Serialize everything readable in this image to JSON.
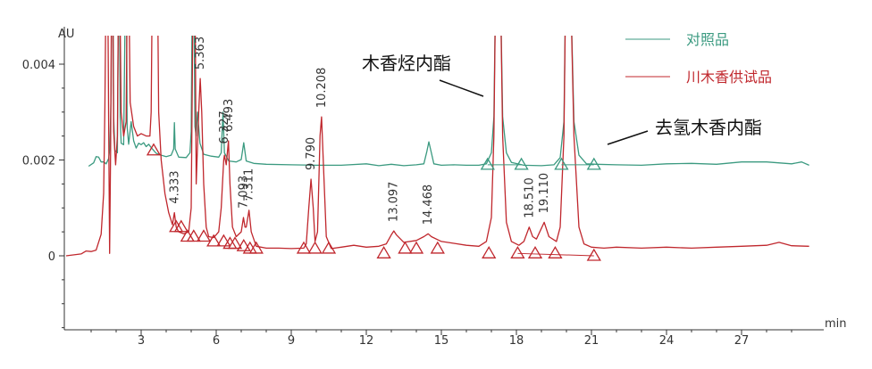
{
  "chart_data": {
    "type": "line",
    "title": "",
    "xlabel": "min",
    "ylabel": "AU",
    "xlim": [
      0,
      30
    ],
    "ylim": [
      -0.0016,
      0.0043
    ],
    "grid": false,
    "legend_position": "top-right",
    "x_ticks": [
      3,
      6,
      9,
      12,
      15,
      18,
      21,
      24,
      27
    ],
    "x_tick_labels": [
      "3",
      "6",
      "9",
      "12",
      "15",
      "18",
      "21",
      "24",
      "27"
    ],
    "y_ticks": [
      0,
      0.002,
      0.004
    ],
    "y_tick_labels": [
      "0",
      "0.002",
      "0.004"
    ],
    "series": [
      {
        "name": "对照品",
        "color": "#3b9a80",
        "points": [
          [
            0.9,
            0.00187
          ],
          [
            1.1,
            0.00194
          ],
          [
            1.2,
            0.00207
          ],
          [
            1.3,
            0.00206
          ],
          [
            1.4,
            0.00196
          ],
          [
            1.5,
            0.00196
          ],
          [
            1.6,
            0.00192
          ],
          [
            1.7,
            0.00203
          ],
          [
            1.75,
            0.00225
          ],
          [
            1.8,
            0.0034
          ],
          [
            1.83,
            0.006
          ],
          [
            1.87,
            0.006
          ],
          [
            1.9,
            0.0029
          ],
          [
            1.95,
            0.0022
          ],
          [
            2.05,
            0.00215
          ],
          [
            2.1,
            0.006
          ],
          [
            2.13,
            0.006
          ],
          [
            2.16,
            0.0029
          ],
          [
            2.2,
            0.00235
          ],
          [
            2.3,
            0.00232
          ],
          [
            2.38,
            0.006
          ],
          [
            2.41,
            0.006
          ],
          [
            2.44,
            0.0027
          ],
          [
            2.5,
            0.00233
          ],
          [
            2.6,
            0.0028
          ],
          [
            2.7,
            0.0024
          ],
          [
            2.8,
            0.00225
          ],
          [
            2.9,
            0.00235
          ],
          [
            3.0,
            0.00232
          ],
          [
            3.1,
            0.00236
          ],
          [
            3.2,
            0.00228
          ],
          [
            3.3,
            0.00233
          ],
          [
            3.4,
            0.00226
          ],
          [
            3.5,
            0.0022
          ],
          [
            3.6,
            0.00214
          ],
          [
            3.8,
            0.0021
          ],
          [
            4.0,
            0.00207
          ],
          [
            4.2,
            0.0021
          ],
          [
            4.3,
            0.00223
          ],
          [
            4.33,
            0.00278
          ],
          [
            4.36,
            0.00223
          ],
          [
            4.5,
            0.00206
          ],
          [
            4.8,
            0.00205
          ],
          [
            4.95,
            0.00215
          ],
          [
            5.0,
            0.0026
          ],
          [
            5.05,
            0.006
          ],
          [
            5.1,
            0.006
          ],
          [
            5.15,
            0.0027
          ],
          [
            5.2,
            0.0025
          ],
          [
            5.25,
            0.003
          ],
          [
            5.3,
            0.0027
          ],
          [
            5.35,
            0.00235
          ],
          [
            5.5,
            0.00212
          ],
          [
            5.8,
            0.00208
          ],
          [
            6.1,
            0.00206
          ],
          [
            6.2,
            0.00215
          ],
          [
            6.27,
            0.003
          ],
          [
            6.33,
            0.00215
          ],
          [
            6.5,
            0.00198
          ],
          [
            6.8,
            0.00196
          ],
          [
            7.0,
            0.00201
          ],
          [
            7.1,
            0.00236
          ],
          [
            7.2,
            0.00198
          ],
          [
            7.5,
            0.00193
          ],
          [
            8.0,
            0.00191
          ],
          [
            9.0,
            0.0019
          ],
          [
            10.0,
            0.00189
          ],
          [
            11.0,
            0.00189
          ],
          [
            12.0,
            0.00192
          ],
          [
            12.5,
            0.00188
          ],
          [
            13.0,
            0.00191
          ],
          [
            13.5,
            0.00188
          ],
          [
            14.0,
            0.0019
          ],
          [
            14.3,
            0.00192
          ],
          [
            14.42,
            0.00218
          ],
          [
            14.5,
            0.00238
          ],
          [
            14.6,
            0.00215
          ],
          [
            14.7,
            0.00192
          ],
          [
            15.0,
            0.00189
          ],
          [
            15.5,
            0.0019
          ],
          [
            16.0,
            0.00189
          ],
          [
            16.5,
            0.00189
          ],
          [
            16.8,
            0.00192
          ],
          [
            17.0,
            0.00215
          ],
          [
            17.1,
            0.0029
          ],
          [
            17.18,
            0.006
          ],
          [
            17.35,
            0.006
          ],
          [
            17.45,
            0.0029
          ],
          [
            17.6,
            0.00215
          ],
          [
            17.8,
            0.00195
          ],
          [
            18.3,
            0.00189
          ],
          [
            19.0,
            0.00188
          ],
          [
            19.5,
            0.0019
          ],
          [
            19.75,
            0.00205
          ],
          [
            19.9,
            0.0028
          ],
          [
            19.98,
            0.006
          ],
          [
            20.15,
            0.006
          ],
          [
            20.3,
            0.0028
          ],
          [
            20.5,
            0.0021
          ],
          [
            20.8,
            0.00192
          ],
          [
            21.2,
            0.00191
          ],
          [
            22.0,
            0.0019
          ],
          [
            23.0,
            0.00189
          ],
          [
            24.0,
            0.00192
          ],
          [
            25.0,
            0.00193
          ],
          [
            26.0,
            0.00191
          ],
          [
            27.0,
            0.00196
          ],
          [
            28.0,
            0.00196
          ],
          [
            29.0,
            0.00192
          ],
          [
            29.4,
            0.00196
          ],
          [
            29.7,
            0.00189
          ]
        ],
        "baseline_marks": [
          [
            16.85,
            0.0019
          ],
          [
            18.2,
            0.0019
          ],
          [
            19.8,
            0.0019
          ],
          [
            21.1,
            0.0019
          ]
        ]
      },
      {
        "name": "川木香供试品",
        "color": "#c0272d",
        "points": [
          [
            0.0,
            0.0
          ],
          [
            0.6,
            4e-05
          ],
          [
            0.8,
            0.0001
          ],
          [
            1.0,
            9e-05
          ],
          [
            1.2,
            0.00012
          ],
          [
            1.4,
            0.00045
          ],
          [
            1.5,
            0.0013
          ],
          [
            1.55,
            0.0031
          ],
          [
            1.6,
            0.006
          ],
          [
            1.66,
            0.006
          ],
          [
            1.7,
            0.0028
          ],
          [
            1.74,
            5e-05
          ],
          [
            1.78,
            0.0022
          ],
          [
            1.82,
            0.006
          ],
          [
            1.86,
            0.006
          ],
          [
            1.9,
            0.0026
          ],
          [
            1.98,
            0.0019
          ],
          [
            2.05,
            0.0025
          ],
          [
            2.1,
            0.006
          ],
          [
            2.14,
            0.006
          ],
          [
            2.2,
            0.003
          ],
          [
            2.3,
            0.0025
          ],
          [
            2.4,
            0.0028
          ],
          [
            2.45,
            0.006
          ],
          [
            2.5,
            0.006
          ],
          [
            2.56,
            0.0032
          ],
          [
            2.7,
            0.0027
          ],
          [
            2.85,
            0.0025
          ],
          [
            3.0,
            0.00255
          ],
          [
            3.2,
            0.0025
          ],
          [
            3.35,
            0.0025
          ],
          [
            3.4,
            0.003
          ],
          [
            3.45,
            0.006
          ],
          [
            3.65,
            0.006
          ],
          [
            3.7,
            0.003
          ],
          [
            3.8,
            0.002
          ],
          [
            3.95,
            0.0013
          ],
          [
            4.1,
            0.0009
          ],
          [
            4.25,
            0.00065
          ],
          [
            4.33,
            0.0009
          ],
          [
            4.4,
            0.0006
          ],
          [
            4.5,
            0.0005
          ],
          [
            4.7,
            0.00046
          ],
          [
            4.9,
            0.0005
          ],
          [
            5.0,
            0.001
          ],
          [
            5.05,
            0.004
          ],
          [
            5.08,
            0.006
          ],
          [
            5.15,
            0.006
          ],
          [
            5.2,
            0.0015
          ],
          [
            5.3,
            0.003
          ],
          [
            5.36,
            0.0037
          ],
          [
            5.42,
            0.003
          ],
          [
            5.5,
            0.0015
          ],
          [
            5.6,
            0.0006
          ],
          [
            5.7,
            0.0004
          ],
          [
            5.9,
            0.00038
          ],
          [
            6.1,
            0.0005
          ],
          [
            6.2,
            0.001
          ],
          [
            6.3,
            0.002
          ],
          [
            6.33,
            0.0021
          ],
          [
            6.4,
            0.0019
          ],
          [
            6.49,
            0.0024
          ],
          [
            6.55,
            0.0015
          ],
          [
            6.65,
            0.0006
          ],
          [
            6.8,
            0.0004
          ],
          [
            7.0,
            0.0005
          ],
          [
            7.09,
            0.0008
          ],
          [
            7.15,
            0.0006
          ],
          [
            7.2,
            0.0006
          ],
          [
            7.31,
            0.00095
          ],
          [
            7.4,
            0.0005
          ],
          [
            7.6,
            0.0002
          ],
          [
            8.0,
            0.00016
          ],
          [
            8.5,
            0.00016
          ],
          [
            9.0,
            0.00015
          ],
          [
            9.5,
            0.00016
          ],
          [
            9.6,
            0.00025
          ],
          [
            9.7,
            0.001
          ],
          [
            9.79,
            0.0016
          ],
          [
            9.88,
            0.001
          ],
          [
            9.95,
            0.0003
          ],
          [
            10.05,
            0.0005
          ],
          [
            10.15,
            0.0025
          ],
          [
            10.21,
            0.0029
          ],
          [
            10.28,
            0.002
          ],
          [
            10.4,
            0.0004
          ],
          [
            10.6,
            0.00015
          ],
          [
            11.0,
            0.00018
          ],
          [
            11.5,
            0.00022
          ],
          [
            12.0,
            0.00018
          ],
          [
            12.5,
            0.0002
          ],
          [
            12.8,
            0.00025
          ],
          [
            13.0,
            0.00044
          ],
          [
            13.1,
            0.00052
          ],
          [
            13.2,
            0.00044
          ],
          [
            13.5,
            0.00028
          ],
          [
            14.0,
            0.00032
          ],
          [
            14.3,
            0.0004
          ],
          [
            14.47,
            0.00046
          ],
          [
            14.6,
            0.0004
          ],
          [
            15.0,
            0.0003
          ],
          [
            15.5,
            0.00026
          ],
          [
            16.0,
            0.00022
          ],
          [
            16.5,
            0.0002
          ],
          [
            16.8,
            0.0003
          ],
          [
            17.0,
            0.0008
          ],
          [
            17.1,
            0.0025
          ],
          [
            17.18,
            0.006
          ],
          [
            17.35,
            0.006
          ],
          [
            17.45,
            0.0025
          ],
          [
            17.6,
            0.0007
          ],
          [
            17.8,
            0.0003
          ],
          [
            18.1,
            0.00022
          ],
          [
            18.3,
            0.0003
          ],
          [
            18.51,
            0.0006
          ],
          [
            18.65,
            0.0004
          ],
          [
            18.8,
            0.00035
          ],
          [
            19.11,
            0.0007
          ],
          [
            19.3,
            0.0004
          ],
          [
            19.6,
            0.0003
          ],
          [
            19.75,
            0.0006
          ],
          [
            19.9,
            0.0025
          ],
          [
            19.98,
            0.006
          ],
          [
            20.15,
            0.006
          ],
          [
            20.3,
            0.0025
          ],
          [
            20.5,
            0.0006
          ],
          [
            20.7,
            0.00025
          ],
          [
            21.0,
            0.00018
          ],
          [
            21.5,
            0.00016
          ],
          [
            22.0,
            0.00018
          ],
          [
            23.0,
            0.00016
          ],
          [
            24.0,
            0.00018
          ],
          [
            25.0,
            0.00016
          ],
          [
            26.0,
            0.00018
          ],
          [
            27.0,
            0.0002
          ],
          [
            28.0,
            0.00022
          ],
          [
            28.5,
            0.00028
          ],
          [
            29.0,
            0.00021
          ],
          [
            29.7,
            0.0002
          ]
        ],
        "baseline_marks": [
          [
            3.5,
            0.0022
          ],
          [
            4.4,
            0.0006
          ],
          [
            4.6,
            0.0006
          ],
          [
            4.85,
            0.0004
          ],
          [
            5.1,
            0.0004
          ],
          [
            5.5,
            0.0004
          ],
          [
            5.9,
            0.0003
          ],
          [
            6.3,
            0.0003
          ],
          [
            6.55,
            0.00025
          ],
          [
            6.75,
            0.00025
          ],
          [
            7.1,
            0.0002
          ],
          [
            7.35,
            0.00015
          ],
          [
            7.6,
            0.00015
          ],
          [
            9.5,
            0.00015
          ],
          [
            9.95,
            0.00015
          ],
          [
            10.5,
            0.00015
          ],
          [
            12.7,
            5e-05
          ],
          [
            13.55,
            0.00015
          ],
          [
            14.0,
            0.00015
          ],
          [
            14.85,
            0.00015
          ],
          [
            16.9,
            5e-05
          ],
          [
            18.05,
            5e-05
          ],
          [
            18.75,
            5e-05
          ],
          [
            19.55,
            5e-05
          ],
          [
            21.1,
            0.0
          ]
        ]
      }
    ],
    "peak_labels": [
      {
        "text": "4.333",
        "x": 4.333,
        "y": 0.0009
      },
      {
        "text": "5.363",
        "x": 5.363,
        "y": 0.0037
      },
      {
        "text": "6.327",
        "x": 6.327,
        "y": 0.00215
      },
      {
        "text": "6.493",
        "x": 6.493,
        "y": 0.0024
      },
      {
        "text": "7.093",
        "x": 7.093,
        "y": 0.0008
      },
      {
        "text": "7.311",
        "x": 7.311,
        "y": 0.00095
      },
      {
        "text": "9.790",
        "x": 9.79,
        "y": 0.0016
      },
      {
        "text": "10.208",
        "x": 10.208,
        "y": 0.0029
      },
      {
        "text": "13.097",
        "x": 13.097,
        "y": 0.00052
      },
      {
        "text": "14.468",
        "x": 14.468,
        "y": 0.00046
      },
      {
        "text": "18.510",
        "x": 18.51,
        "y": 0.0006
      },
      {
        "text": "19.110",
        "x": 19.11,
        "y": 0.0007
      }
    ],
    "annotations": [
      {
        "text": "木香烃内酯",
        "pointer_to": [
          17.2,
          0.0034
        ]
      },
      {
        "text": "去氢木香内酯",
        "pointer_to": [
          21.2,
          0.0021
        ]
      }
    ]
  }
}
